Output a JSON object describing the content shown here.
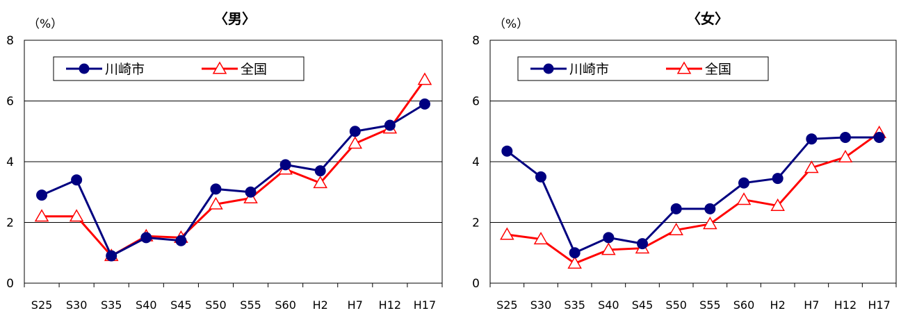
{
  "chart_data": [
    {
      "type": "line",
      "title": "〈男〉",
      "unit_label": "（%）",
      "categories": [
        "S25",
        "S30",
        "S35",
        "S40",
        "S45",
        "S50",
        "S55",
        "S60",
        "H2",
        "H7",
        "H12",
        "H17"
      ],
      "ylim": [
        0,
        8
      ],
      "yticks": [
        "0",
        "2",
        "4",
        "6",
        "8"
      ],
      "grid": true,
      "legend_position": "top-left",
      "series": [
        {
          "name": "川崎市",
          "color": "#000080",
          "marker": "circle",
          "values": [
            2.9,
            3.4,
            0.9,
            1.5,
            1.4,
            3.1,
            3.0,
            3.9,
            3.7,
            5.0,
            5.2,
            5.9
          ]
        },
        {
          "name": "全国",
          "color": "#ff0000",
          "marker": "triangle",
          "values": [
            2.2,
            2.2,
            0.9,
            1.55,
            1.5,
            2.6,
            2.8,
            3.75,
            3.3,
            4.6,
            5.1,
            6.7
          ]
        }
      ]
    },
    {
      "type": "line",
      "title": "〈女〉",
      "unit_label": "（%）",
      "categories": [
        "S25",
        "S30",
        "S35",
        "S40",
        "S45",
        "S50",
        "S55",
        "S60",
        "H2",
        "H7",
        "H12",
        "H17"
      ],
      "ylim": [
        0,
        8
      ],
      "yticks": [
        "0",
        "2",
        "4",
        "6",
        "8"
      ],
      "grid": true,
      "legend_position": "top-left",
      "series": [
        {
          "name": "川崎市",
          "color": "#000080",
          "marker": "circle",
          "values": [
            4.35,
            3.5,
            1.0,
            1.5,
            1.3,
            2.45,
            2.45,
            3.3,
            3.45,
            4.75,
            4.8,
            4.8
          ]
        },
        {
          "name": "全国",
          "color": "#ff0000",
          "marker": "triangle",
          "values": [
            1.6,
            1.45,
            0.65,
            1.1,
            1.15,
            1.75,
            1.95,
            2.75,
            2.55,
            3.8,
            4.15,
            4.95
          ]
        }
      ]
    }
  ]
}
